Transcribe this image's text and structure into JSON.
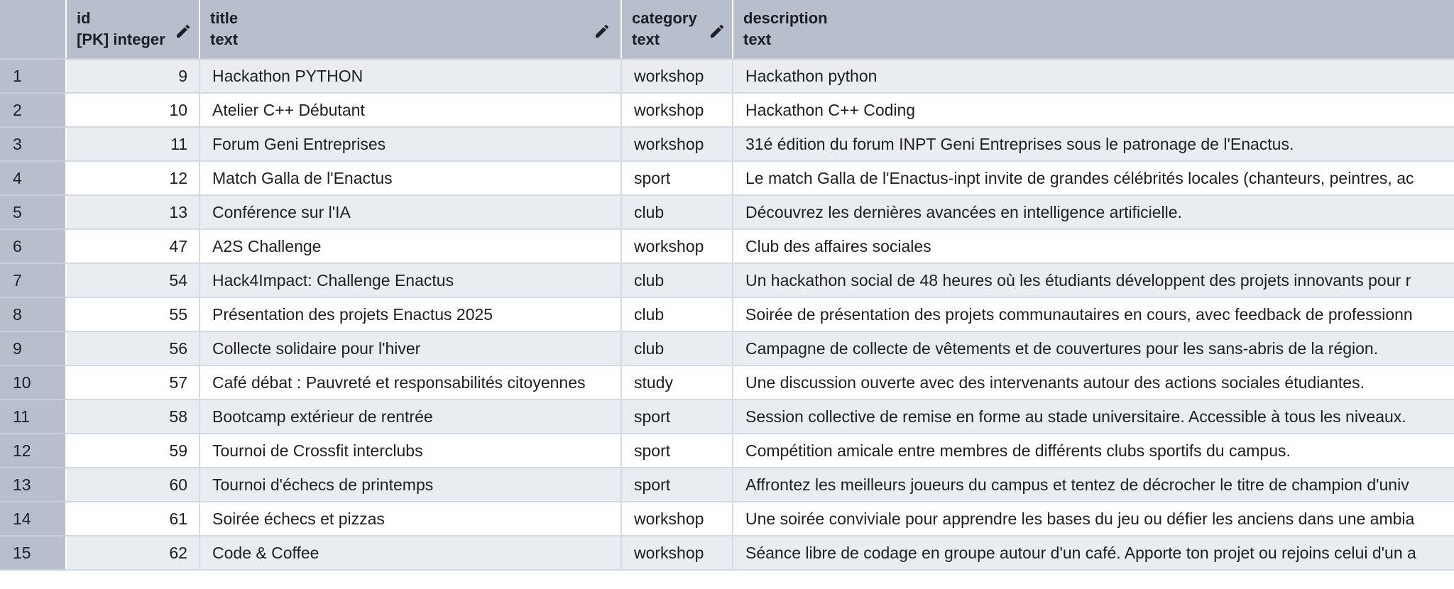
{
  "columns": {
    "id": {
      "name": "id",
      "type": "[PK] integer"
    },
    "title": {
      "name": "title",
      "type": "text"
    },
    "category": {
      "name": "category",
      "type": "text"
    },
    "description": {
      "name": "description",
      "type": "text"
    }
  },
  "rows": [
    {
      "n": "1",
      "id": "9",
      "title": "Hackathon PYTHON",
      "category": "workshop",
      "description": "Hackathon python"
    },
    {
      "n": "2",
      "id": "10",
      "title": "Atelier C++ Débutant",
      "category": "workshop",
      "description": "Hackathon C++ Coding"
    },
    {
      "n": "3",
      "id": "11",
      "title": "Forum Geni Entreprises",
      "category": "workshop",
      "description": "31é édition du forum INPT Geni Entreprises sous le patronage de l'Enactus."
    },
    {
      "n": "4",
      "id": "12",
      "title": "Match Galla de l'Enactus",
      "category": "sport",
      "description": "Le match Galla de l'Enactus-inpt invite de grandes célébrités locales (chanteurs, peintres, ac"
    },
    {
      "n": "5",
      "id": "13",
      "title": "Conférence sur l'IA",
      "category": "club",
      "description": "Découvrez les dernières avancées en intelligence artificielle."
    },
    {
      "n": "6",
      "id": "47",
      "title": "A2S Challenge",
      "category": "workshop",
      "description": "Club des affaires sociales"
    },
    {
      "n": "7",
      "id": "54",
      "title": "Hack4Impact: Challenge Enactus",
      "category": "club",
      "description": "Un hackathon social de 48 heures où les étudiants développent des projets innovants pour r"
    },
    {
      "n": "8",
      "id": "55",
      "title": " Présentation des projets Enactus 2025",
      "category": "club",
      "description": "Soirée de présentation des projets communautaires en cours, avec feedback de professionn"
    },
    {
      "n": "9",
      "id": "56",
      "title": "Collecte solidaire pour l'hiver",
      "category": "club",
      "description": "Campagne de collecte de vêtements et de couvertures pour les sans-abris de la région."
    },
    {
      "n": "10",
      "id": "57",
      "title": "Café débat : Pauvreté et responsabilités citoyennes",
      "category": "study",
      "description": "Une discussion ouverte avec des intervenants autour des actions sociales étudiantes."
    },
    {
      "n": "11",
      "id": "58",
      "title": "Bootcamp extérieur de rentrée",
      "category": "sport",
      "description": "Session collective de remise en forme au stade universitaire. Accessible à tous les niveaux."
    },
    {
      "n": "12",
      "id": "59",
      "title": "Tournoi de Crossfit interclubs",
      "category": "sport",
      "description": "Compétition amicale entre membres de différents clubs sportifs du campus."
    },
    {
      "n": "13",
      "id": "60",
      "title": "Tournoi d'échecs de printemps",
      "category": "sport",
      "description": "Affrontez les meilleurs joueurs du campus et tentez de décrocher le titre de champion d'univ"
    },
    {
      "n": "14",
      "id": "61",
      "title": "Soirée échecs et pizzas",
      "category": "workshop",
      "description": "Une soirée conviviale pour apprendre les bases du jeu ou défier les anciens dans une ambia"
    },
    {
      "n": "15",
      "id": "62",
      "title": "Code & Coffee",
      "category": "workshop",
      "description": "Séance libre de codage en groupe autour d'un café. Apporte ton projet ou rejoins celui d'un a"
    }
  ],
  "icons": {
    "edit": "pencil-icon"
  },
  "colors": {
    "header_bg": "#b8bfcc",
    "row_alt_bg": "#e9ecf1",
    "row_bg": "#ffffff",
    "text": "#1c1f24"
  }
}
